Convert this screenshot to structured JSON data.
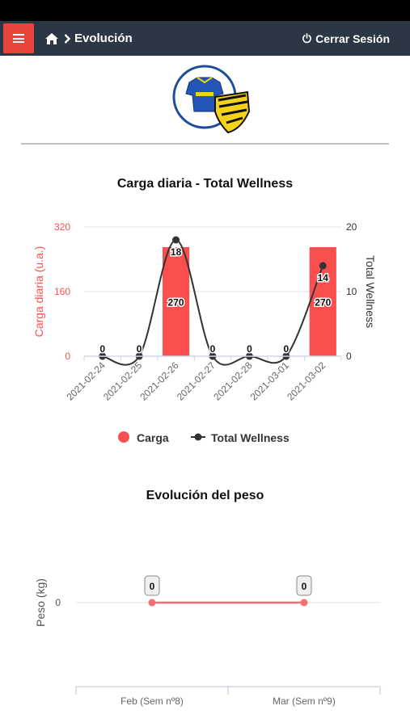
{
  "nav": {
    "breadcrumb": "Evolución",
    "logout_label": "Cerrar Sesión"
  },
  "colors": {
    "nav_bg": "#2b3744",
    "accent": "#e8453c",
    "carga": "#fb4f4f",
    "wellness": "#333333",
    "peso": "#f76e6e"
  },
  "icons": {
    "menu": "hamburger-icon",
    "home": "home-icon",
    "breadcrumb_sep": "chevron-right-icon",
    "logout": "power-icon"
  },
  "chart_data": [
    {
      "type": "bar",
      "title": "Carga diaria - Total Wellness",
      "categories": [
        "2021-02-24",
        "2021-02-25",
        "2021-02-26",
        "2021-02-27",
        "2021-02-28",
        "2021-03-01",
        "2021-03-02"
      ],
      "series": [
        {
          "name": "Carga",
          "type": "bar",
          "axis": "left",
          "values": [
            0,
            0,
            270,
            0,
            0,
            0,
            270
          ]
        },
        {
          "name": "Total Wellness",
          "type": "line",
          "axis": "right",
          "values": [
            0,
            0,
            18,
            0,
            0,
            0,
            14
          ]
        }
      ],
      "ylabel_left": "Carga diaria (u.a.)",
      "ylabel_right": "Total Wellness",
      "ylim_left": [
        0,
        320
      ],
      "yticks_left": [
        "0",
        "160",
        "320"
      ],
      "ylim_right": [
        0,
        20
      ],
      "yticks_right": [
        "0",
        "10",
        "20"
      ],
      "grid": true,
      "legend": "bottom"
    },
    {
      "type": "line",
      "title": "Evolución del peso",
      "categories": [
        "Feb (Sem nº8)",
        "Mar (Sem nº9)"
      ],
      "series": [
        {
          "name": "Peso",
          "values": [
            0,
            0
          ]
        }
      ],
      "ylabel": "Peso (kg)",
      "yticks": [
        "0"
      ],
      "grid": true,
      "legend": "none"
    }
  ]
}
